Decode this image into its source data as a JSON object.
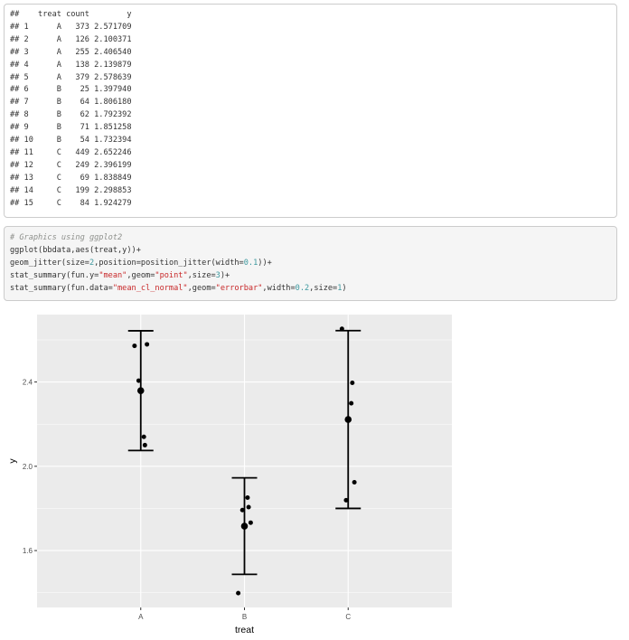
{
  "output_lines": [
    "##    treat count        y",
    "## 1      A   373 2.571709",
    "## 2      A   126 2.100371",
    "## 3      A   255 2.406540",
    "## 4      A   138 2.139879",
    "## 5      A   379 2.578639",
    "## 6      B    25 1.397940",
    "## 7      B    64 1.806180",
    "## 8      B    62 1.792392",
    "## 9      B    71 1.851258",
    "## 10     B    54 1.732394",
    "## 11     C   449 2.652246",
    "## 12     C   249 2.396199",
    "## 13     C    69 1.838849",
    "## 14     C   199 2.298853",
    "## 15     C    84 1.924279"
  ],
  "code": {
    "comment": "# Graphics using ggplot2",
    "l2_a": "ggplot(bbdata,aes(treat,y))+",
    "l3_a": "geom_jitter(size=",
    "l3_b": "2",
    "l3_c": ",position=position_jitter(width=",
    "l3_d": "0.1",
    "l3_e": "))+",
    "l4_a": "stat_summary(fun.y=",
    "l4_b": "\"mean\"",
    "l4_c": ",geom=",
    "l4_d": "\"point\"",
    "l4_e": ",size=",
    "l4_f": "3",
    "l4_g": ")+",
    "l5_a": "stat_summary(fun.data=",
    "l5_b": "\"mean_cl_normal\"",
    "l5_c": ",geom=",
    "l5_d": "\"errorbar\"",
    "l5_e": ",width=",
    "l5_f": "0.2",
    "l5_g": ",size=",
    "l5_h": "1",
    "l5_i": ")"
  },
  "colors": {
    "panel": "#ebebeb",
    "grid": "#ffffff",
    "comment": "#8e908c",
    "string": "#c82829",
    "number": "#3e999f"
  },
  "chart_data": {
    "type": "scatter",
    "xlabel": "treat",
    "ylabel": "y",
    "categories": [
      "A",
      "B",
      "C"
    ],
    "yticks": [
      1.6,
      2.0,
      2.4
    ],
    "ylim": [
      1.33,
      2.72
    ],
    "points": [
      {
        "cat": "A",
        "y": 2.571709
      },
      {
        "cat": "A",
        "y": 2.100371
      },
      {
        "cat": "A",
        "y": 2.40654
      },
      {
        "cat": "A",
        "y": 2.139879
      },
      {
        "cat": "A",
        "y": 2.578639
      },
      {
        "cat": "B",
        "y": 1.39794
      },
      {
        "cat": "B",
        "y": 1.80618
      },
      {
        "cat": "B",
        "y": 1.792392
      },
      {
        "cat": "B",
        "y": 1.851258
      },
      {
        "cat": "B",
        "y": 1.732394
      },
      {
        "cat": "C",
        "y": 2.652246
      },
      {
        "cat": "C",
        "y": 2.396199
      },
      {
        "cat": "C",
        "y": 1.838849
      },
      {
        "cat": "C",
        "y": 2.298853
      },
      {
        "cat": "C",
        "y": 1.924279
      }
    ],
    "means": [
      {
        "cat": "A",
        "y": 2.359
      },
      {
        "cat": "B",
        "y": 1.716
      },
      {
        "cat": "C",
        "y": 2.222
      }
    ],
    "errorbars": [
      {
        "cat": "A",
        "ymin": 2.075,
        "ymax": 2.643
      },
      {
        "cat": "B",
        "ymin": 1.487,
        "ymax": 1.945
      },
      {
        "cat": "C",
        "ymin": 1.8,
        "ymax": 2.644
      }
    ],
    "grid": true
  }
}
